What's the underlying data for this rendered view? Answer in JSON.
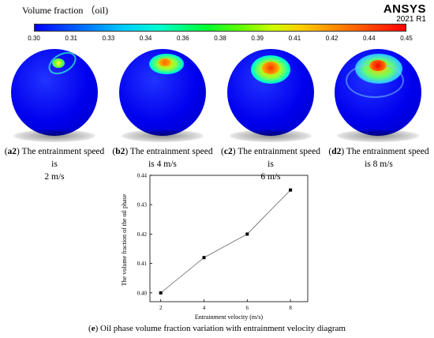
{
  "legend": {
    "title": "Volume fraction （oil)",
    "ticks": [
      "0.30",
      "0.31",
      "0.33",
      "0.34",
      "0.36",
      "0.38",
      "0.39",
      "0.41",
      "0.42",
      "0.44",
      "0.45"
    ]
  },
  "brand": {
    "name": "ANSYS",
    "version": "2021 R1"
  },
  "panels": [
    {
      "tag": "a2",
      "line1": "The entrainment speed is",
      "line2": "2 m/s"
    },
    {
      "tag": "b2",
      "line1": "The entrainment speed",
      "line2": "is 4 m/s"
    },
    {
      "tag": "c2",
      "line1": "The entrainment speed is",
      "line2": "6 m/s"
    },
    {
      "tag": "d2",
      "line1": "The entrainment speed",
      "line2": "is 8 m/s"
    }
  ],
  "chart_caption": {
    "tag": "e",
    "text": "Oil phase volume fraction variation with entrainment velocity diagram"
  },
  "chart_data": {
    "type": "line",
    "x": [
      2,
      4,
      6,
      8
    ],
    "values": [
      0.4,
      0.412,
      0.42,
      0.435
    ],
    "xlabel": "Entrainment velocity (m/s)",
    "ylabel": "The volume fraction of the oil phase",
    "xlim": [
      1.5,
      8.8
    ],
    "ylim": [
      0.397,
      0.44
    ],
    "xticks": [
      "2",
      "4",
      "6",
      "8"
    ],
    "yticks": [
      "0.40",
      "0.41",
      "0.42",
      "0.43",
      "0.44"
    ],
    "marker": "square",
    "grid": false
  }
}
